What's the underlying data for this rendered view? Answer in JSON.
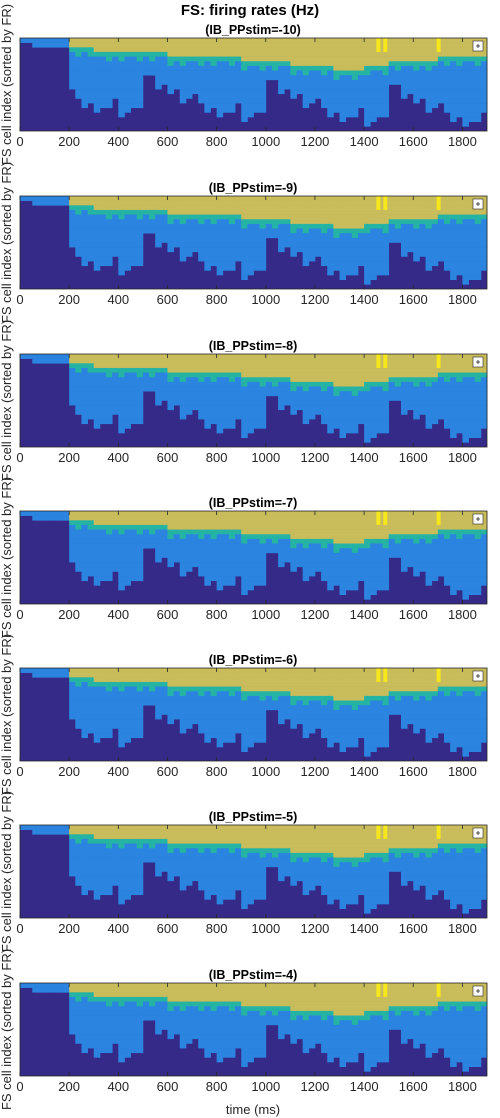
{
  "figure": {
    "title": "FS: firing rates (Hz)",
    "xlabel": "time (ms)",
    "ylabel": "FS cell index (sorted by FR)"
  },
  "chart_data": {
    "type": "heatmap",
    "xlim": [
      0,
      1900
    ],
    "x_ticks": [
      0,
      200,
      400,
      600,
      800,
      1000,
      1200,
      1400,
      1600,
      1800
    ],
    "n_cells": 20,
    "colormap": [
      "#352a87",
      "#2b84e0",
      "#25b4a4",
      "#c9bc5b",
      "#f6e71d"
    ],
    "legend_placement": "top-right",
    "panels": [
      {
        "title": "(IB_PPstim=-10)"
      },
      {
        "title": "(IB_PPstim=-9)"
      },
      {
        "title": "(IB_PPstim=-8)"
      },
      {
        "title": "(IB_PPstim=-7)"
      },
      {
        "title": "(IB_PPstim=-6)"
      },
      {
        "title": "(IB_PPstim=-5)"
      },
      {
        "title": "(IB_PPstim=-4)"
      }
    ]
  }
}
